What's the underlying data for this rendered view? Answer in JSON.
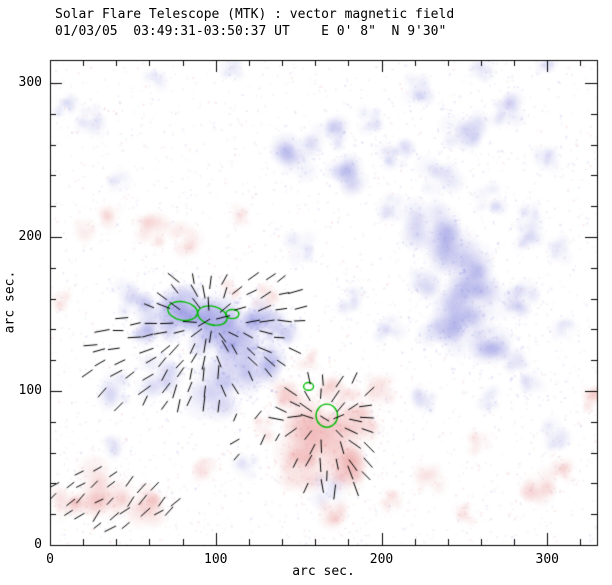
{
  "chart_data": {
    "type": "heatmap",
    "title": "Solar Flare Telescope (MTK) : vector magnetic field",
    "subtitle": "01/03/05  03:49:31-03:50:37 UT    E 0' 8\"  N 9'30\"",
    "xlabel": "arc sec.",
    "ylabel": "arc sec.",
    "xlim": [
      0,
      330
    ],
    "ylim": [
      0,
      315
    ],
    "xticks": [
      0,
      100,
      200,
      300
    ],
    "yticks": [
      0,
      100,
      200,
      300
    ],
    "minor_tick_interval": 20,
    "grid": false,
    "legend": null,
    "colors": {
      "negative_polarity": "#5a5ad2",
      "positive_polarity": "#e06464",
      "vector": "#000000",
      "contour": "#00bb00",
      "axis": "#000000",
      "background": "#ffffff"
    },
    "blobs": {
      "negative": [
        [
          51,
          159,
          13,
          0.55
        ],
        [
          72,
          149,
          16,
          0.8
        ],
        [
          94,
          140,
          19,
          0.9
        ],
        [
          112,
          130,
          19,
          0.9
        ],
        [
          124,
          114,
          16,
          0.8
        ],
        [
          100,
          101,
          16,
          0.6
        ],
        [
          66,
          110,
          13,
          0.45
        ],
        [
          42,
          101,
          11,
          0.35
        ],
        [
          139,
          140,
          10,
          0.6
        ],
        [
          127,
          147,
          12,
          0.7
        ],
        [
          83,
          160,
          10,
          0.5
        ],
        [
          56,
          135,
          10,
          0.45
        ],
        [
          151,
          250,
          16,
          0.6
        ],
        [
          178,
          240,
          11,
          0.5
        ],
        [
          169,
          266,
          10,
          0.45
        ],
        [
          208,
          253,
          10,
          0.45
        ],
        [
          193,
          276,
          8,
          0.3
        ],
        [
          229,
          205,
          16,
          0.55
        ],
        [
          247,
          185,
          18,
          0.75
        ],
        [
          253,
          159,
          18,
          0.8
        ],
        [
          238,
          140,
          14,
          0.7
        ],
        [
          266,
          133,
          13,
          0.6
        ],
        [
          284,
          159,
          12,
          0.5
        ],
        [
          225,
          170,
          10,
          0.4
        ],
        [
          250,
          269,
          13,
          0.55
        ],
        [
          275,
          282,
          10,
          0.45
        ],
        [
          299,
          250,
          8,
          0.35
        ],
        [
          260,
          308,
          8,
          0.3
        ],
        [
          299,
          312,
          7,
          0.3
        ],
        [
          223,
          295,
          10,
          0.35
        ],
        [
          235,
          240,
          12,
          0.35
        ],
        [
          265,
          225,
          10,
          0.3
        ],
        [
          290,
          200,
          9,
          0.3
        ],
        [
          280,
          120,
          9,
          0.3
        ],
        [
          310,
          140,
          8,
          0.25
        ],
        [
          205,
          220,
          9,
          0.3
        ],
        [
          287,
          214,
          9,
          0.3
        ],
        [
          308,
          192,
          8,
          0.25
        ],
        [
          265,
          95,
          8,
          0.25
        ],
        [
          24,
          276,
          10,
          0.3
        ],
        [
          9,
          286,
          7,
          0.3
        ],
        [
          42,
          237,
          8,
          0.2
        ],
        [
          63,
          302,
          7,
          0.2
        ],
        [
          109,
          309,
          8,
          0.25
        ],
        [
          151,
          192,
          10,
          0.3
        ],
        [
          181,
          159,
          8,
          0.3
        ],
        [
          205,
          140,
          9,
          0.3
        ],
        [
          305,
          71,
          10,
          0.3
        ],
        [
          290,
          107,
          8,
          0.25
        ],
        [
          226,
          94,
          9,
          0.3
        ],
        [
          169,
          36,
          10,
          0.3
        ],
        [
          118,
          52,
          8,
          0.25
        ],
        [
          39,
          65,
          8,
          0.25
        ]
      ],
      "positive": [
        [
          163,
          75,
          22,
          0.85
        ],
        [
          178,
          52,
          16,
          0.7
        ],
        [
          151,
          49,
          13,
          0.6
        ],
        [
          187,
          81,
          13,
          0.6
        ],
        [
          145,
          97,
          10,
          0.5
        ],
        [
          170,
          100,
          9,
          0.4
        ],
        [
          180,
          95,
          8,
          0.35
        ],
        [
          155,
          120,
          7,
          0.3
        ],
        [
          130,
          162,
          8,
          0.35
        ],
        [
          109,
          166,
          7,
          0.3
        ],
        [
          36,
          36,
          16,
          0.6
        ],
        [
          60,
          26,
          13,
          0.55
        ],
        [
          12,
          26,
          10,
          0.45
        ],
        [
          94,
          49,
          8,
          0.3
        ],
        [
          60,
          205,
          12,
          0.4
        ],
        [
          81,
          198,
          10,
          0.35
        ],
        [
          36,
          214,
          8,
          0.3
        ],
        [
          115,
          214,
          7,
          0.25
        ],
        [
          21,
          205,
          8,
          0.25
        ],
        [
          6,
          159,
          7,
          0.25
        ],
        [
          229,
          42,
          10,
          0.3
        ],
        [
          293,
          36,
          12,
          0.5
        ],
        [
          308,
          49,
          8,
          0.4
        ],
        [
          329,
          94,
          8,
          0.4
        ],
        [
          199,
          101,
          10,
          0.35
        ],
        [
          127,
          75,
          8,
          0.3
        ],
        [
          205,
          29,
          8,
          0.3
        ],
        [
          172,
          20,
          10,
          0.35
        ],
        [
          250,
          20,
          8,
          0.25
        ],
        [
          260,
          65,
          8,
          0.25
        ]
      ]
    },
    "vector_clusters": [
      {
        "x0": 14,
        "x1": 152,
        "y0": 92,
        "y1": 176,
        "step": 9,
        "mask": {
          "cx": 88,
          "cy": 132,
          "rx": 72,
          "ry": 44,
          "rot": -22
        },
        "center": [
          97,
          146
        ],
        "jitter": 14,
        "len": 8
      },
      {
        "x0": 138,
        "x1": 200,
        "y0": 36,
        "y1": 112,
        "step": 9,
        "mask": {
          "cx": 168,
          "cy": 72,
          "rx": 33,
          "ry": 42,
          "rot": 0
        },
        "center": [
          166,
          82
        ],
        "jitter": 14,
        "len": 8
      },
      {
        "x0": 2,
        "x1": 76,
        "y0": 12,
        "y1": 50,
        "step": 9,
        "mask": {
          "cx": 38,
          "cy": 30,
          "rx": 42,
          "ry": 20,
          "rot": 8
        },
        "angle": 42,
        "jitter": 18,
        "len": 7
      },
      {
        "x0": 100,
        "x1": 140,
        "y0": 56,
        "y1": 84,
        "step": 13,
        "mask": {
          "cx": 120,
          "cy": 70,
          "rx": 24,
          "ry": 16,
          "rot": 0
        },
        "angle": 45,
        "jitter": 25,
        "len": 6
      }
    ],
    "contours": [
      [
        80,
        152,
        9,
        6,
        -10
      ],
      [
        98,
        149,
        9,
        6,
        -15
      ],
      [
        110,
        150,
        4,
        3,
        0
      ],
      [
        167,
        84,
        6.5,
        7.5,
        0
      ],
      [
        156,
        103,
        3,
        2.5,
        0
      ]
    ]
  }
}
